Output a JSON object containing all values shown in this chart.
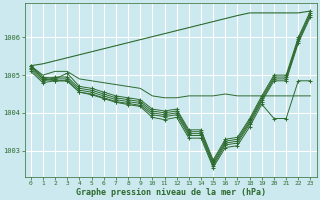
{
  "bg_color": "#cce9f0",
  "grid_color": "#ffffff",
  "line_color": "#2d6a2d",
  "tick_color": "#2d6a2d",
  "xlabel": "Graphe pression niveau de la mer (hPa)",
  "ylim": [
    1002.3,
    1006.9
  ],
  "yticks": [
    1003,
    1004,
    1005,
    1006
  ],
  "xticks": [
    0,
    1,
    2,
    3,
    4,
    5,
    6,
    7,
    8,
    9,
    10,
    11,
    12,
    13,
    14,
    15,
    16,
    17,
    18,
    19,
    20,
    21,
    22,
    23
  ],
  "top_diagonal": [
    1005.25,
    1005.3,
    1005.38,
    1005.46,
    1005.54,
    1005.62,
    1005.7,
    1005.78,
    1005.86,
    1005.94,
    1006.02,
    1006.1,
    1006.18,
    1006.26,
    1006.34,
    1006.42,
    1006.5,
    1006.58,
    1006.65,
    1006.65,
    1006.65,
    1006.65,
    1006.65,
    1006.7
  ],
  "line_upper": [
    1005.25,
    1005.0,
    1005.1,
    1005.1,
    1004.9,
    1004.85,
    1004.8,
    1004.75,
    1004.7,
    1004.65,
    1004.45,
    1004.4,
    1004.4,
    1004.45,
    1004.45,
    1004.45,
    1004.5,
    1004.45,
    1004.45,
    1004.45,
    1004.45,
    1004.45,
    1004.45,
    1004.45
  ],
  "series": [
    [
      1005.25,
      1004.95,
      1004.9,
      1005.05,
      1004.7,
      1004.65,
      1004.55,
      1004.45,
      1004.4,
      1004.35,
      1004.1,
      1004.05,
      1004.1,
      1003.55,
      1003.55,
      1002.75,
      1003.3,
      1003.35,
      1003.85,
      1004.45,
      1005.0,
      1005.0,
      1006.0,
      1006.7
    ],
    [
      1005.2,
      1004.9,
      1004.95,
      1004.95,
      1004.65,
      1004.6,
      1004.5,
      1004.4,
      1004.35,
      1004.3,
      1004.05,
      1004.0,
      1004.05,
      1003.5,
      1003.5,
      1002.7,
      1003.25,
      1003.3,
      1003.8,
      1004.4,
      1004.95,
      1004.95,
      1005.95,
      1006.65
    ],
    [
      1005.15,
      1004.85,
      1004.9,
      1004.9,
      1004.6,
      1004.55,
      1004.45,
      1004.35,
      1004.3,
      1004.25,
      1004.0,
      1003.95,
      1004.0,
      1003.45,
      1003.45,
      1002.65,
      1003.2,
      1003.25,
      1003.75,
      1004.35,
      1004.9,
      1004.9,
      1005.9,
      1006.6
    ],
    [
      1005.1,
      1004.8,
      1004.85,
      1004.85,
      1004.55,
      1004.5,
      1004.4,
      1004.3,
      1004.25,
      1004.2,
      1003.95,
      1003.9,
      1003.95,
      1003.4,
      1003.4,
      1002.6,
      1003.15,
      1003.2,
      1003.7,
      1004.3,
      1004.85,
      1004.85,
      1005.85,
      1006.55
    ]
  ],
  "line_low": [
    1005.25,
    1004.9,
    1004.85,
    1004.85,
    1004.55,
    1004.48,
    1004.38,
    1004.28,
    1004.22,
    1004.17,
    1003.88,
    1003.82,
    1003.88,
    1003.33,
    1003.33,
    1002.55,
    1003.08,
    1003.13,
    1003.63,
    1004.23,
    1003.85,
    1003.85,
    1004.85,
    1004.85
  ]
}
